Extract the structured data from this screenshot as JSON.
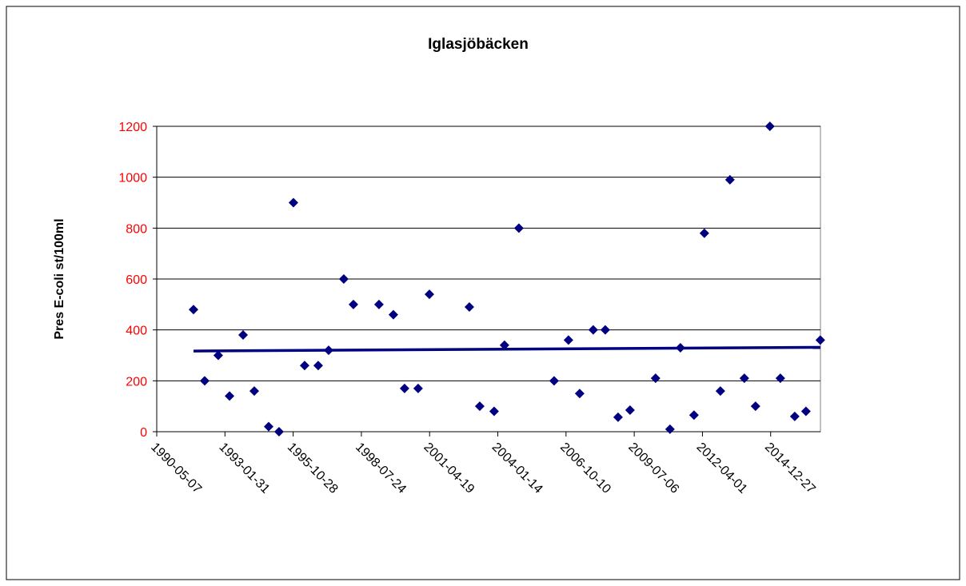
{
  "chart_data": {
    "type": "scatter",
    "title": "Iglasjöbäcken",
    "y_label": "Pres E-coli st/100ml",
    "x": [
      "1991-10-28",
      "1992-04-09",
      "1992-10-25",
      "1993-04-08",
      "1993-10-24",
      "1994-04-06",
      "1994-11-03",
      "1995-04-04",
      "1995-11-01",
      "1996-04-13",
      "1996-10-29",
      "1997-03-31",
      "1997-11-08",
      "1998-03-29",
      "1999-04-08",
      "1999-11-05",
      "2000-04-17",
      "2000-11-02",
      "2001-04-16",
      "2002-11-23",
      "2003-04-24",
      "2003-11-21",
      "2004-04-21",
      "2004-11-18",
      "2006-04-18",
      "2006-11-15",
      "2007-04-28",
      "2007-11-13",
      "2008-05-07",
      "2008-11-11",
      "2009-05-05",
      "2010-05-15",
      "2010-12-12",
      "2011-05-14",
      "2011-11-29",
      "2012-04-29",
      "2012-12-20",
      "2013-05-09",
      "2013-12-06",
      "2014-05-19",
      "2014-12-16",
      "2015-05-18",
      "2015-12-15",
      "2016-05-27",
      "2016-12-24"
    ],
    "values": [
      480,
      200,
      300,
      140,
      380,
      160,
      20,
      0,
      900,
      260,
      260,
      320,
      600,
      500,
      500,
      460,
      170,
      170,
      540,
      490,
      100,
      80,
      340,
      800,
      200,
      360,
      150,
      400,
      400,
      57,
      85,
      210,
      10,
      330,
      65,
      780,
      160,
      990,
      210,
      100,
      1200,
      210,
      60,
      80,
      360
    ],
    "color": "#000080",
    "trendline": true,
    "trend_color": "#000080",
    "xlim": [
      "1990-05-07",
      "2016-12-26"
    ],
    "xticks": [
      "1990-05-07",
      "1993-01-31",
      "1995-10-28",
      "1998-07-24",
      "2001-04-19",
      "2004-01-14",
      "2006-10-10",
      "2009-07-06",
      "2012-04-01",
      "2014-12-27"
    ],
    "ylim": [
      0,
      1200
    ],
    "yticks": [
      0,
      200,
      400,
      600,
      800,
      1000,
      1200
    ],
    "ytick_color": "#ff0000",
    "grid": true
  }
}
